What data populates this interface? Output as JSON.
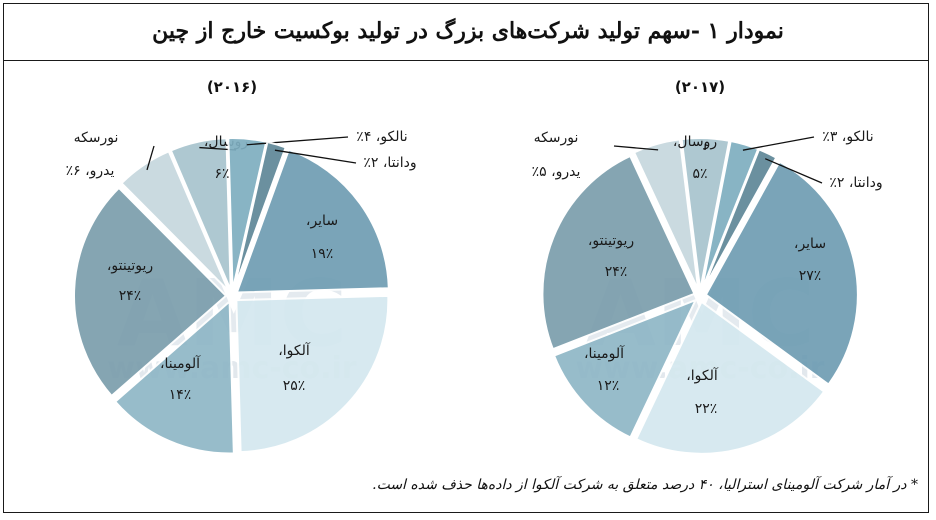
{
  "title": "نمودار ۱ -سهم تولید شرکت‌های بزرگ در تولید بوکسیت خارج از چین",
  "footnote": "* در آمار شرکت آلومینای استرالیا، ۴۰ درصد متعلق به شرکت آلکوا از داده‌ها حذف شده است.",
  "watermark": {
    "logo": "AMC",
    "url": "www.amc-co.ir"
  },
  "chart_data": [
    {
      "type": "pie",
      "title": "(۲۰۱۶)",
      "slices": [
        {
          "label": "سایر،",
          "value": 19,
          "value_text": "۱۹٪",
          "color": "#6f9db3"
        },
        {
          "label": "آلکوا،",
          "value": 25,
          "value_text": "۲۵٪",
          "color": "#d4e8ef"
        },
        {
          "label": "آلومینا،",
          "value": 14,
          "value_text": "۱۴٪",
          "color": "#8fb7c6"
        },
        {
          "label": "ریوتینتو،",
          "value": 24,
          "value_text": "۲۴٪",
          "color": "#7b9eac"
        },
        {
          "label": "نورسکه",
          "value": 6,
          "value_text": "یدرو، ۶٪",
          "color": "#c6d7de"
        },
        {
          "label": "روسال،",
          "value": 6,
          "value_text": "۶٪",
          "color": "#a8c4ce"
        },
        {
          "label": "نالکو، ۴٪",
          "value": 4,
          "value_text": "",
          "color": "#7eaec0"
        },
        {
          "label": "ودانتا، ۲٪",
          "value": 2,
          "value_text": "",
          "color": "#5f8797"
        }
      ]
    },
    {
      "type": "pie",
      "title": "(۲۰۱۷)",
      "slices": [
        {
          "label": "سایر،",
          "value": 27,
          "value_text": "۲۷٪",
          "color": "#6f9db3"
        },
        {
          "label": "آلکوا،",
          "value": 22,
          "value_text": "۲۲٪",
          "color": "#d4e8ef"
        },
        {
          "label": "آلومینا،",
          "value": 12,
          "value_text": "۱۲٪",
          "color": "#8fb7c6"
        },
        {
          "label": "ریوتینتو،",
          "value": 24,
          "value_text": "۲۴٪",
          "color": "#7b9eac"
        },
        {
          "label": "نورسکه",
          "value": 5,
          "value_text": "یدرو، ۵٪",
          "color": "#c6d7de"
        },
        {
          "label": "روسال،",
          "value": 5,
          "value_text": "۵٪",
          "color": "#a8c4ce"
        },
        {
          "label": "نالکو، ۳٪",
          "value": 3,
          "value_text": "",
          "color": "#7eaec0"
        },
        {
          "label": "ودانتا، ۲٪",
          "value": 2,
          "value_text": "",
          "color": "#5f8797"
        }
      ]
    }
  ]
}
